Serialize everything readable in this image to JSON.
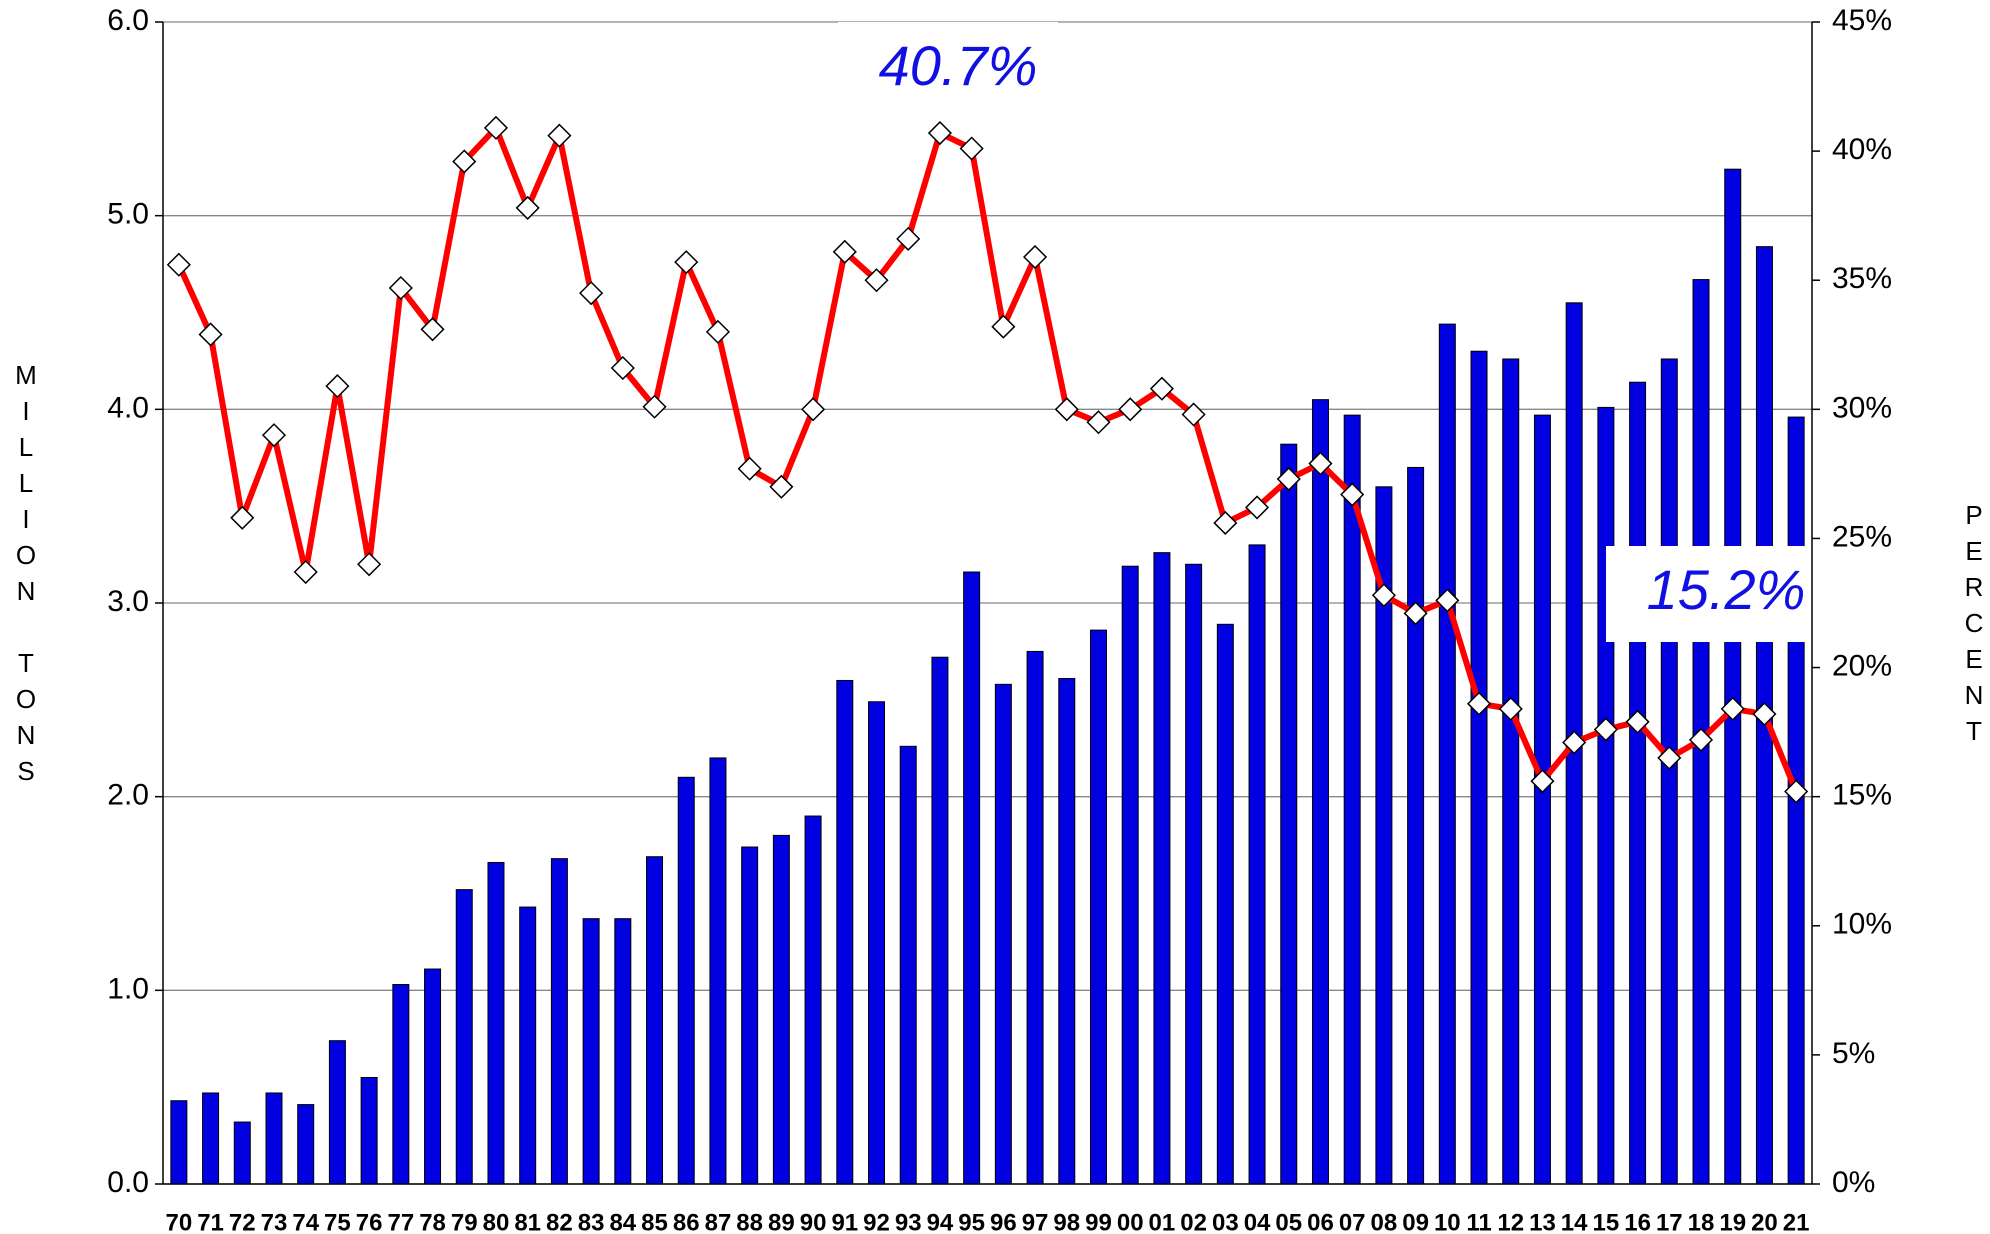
{
  "chart_data": {
    "type": "bar",
    "ylabel": "MILLION TONS",
    "y2label": "PERCENT",
    "categories": [
      "70",
      "71",
      "72",
      "73",
      "74",
      "75",
      "76",
      "77",
      "78",
      "79",
      "80",
      "81",
      "82",
      "83",
      "84",
      "85",
      "86",
      "87",
      "88",
      "89",
      "90",
      "91",
      "92",
      "93",
      "94",
      "95",
      "96",
      "97",
      "98",
      "99",
      "00",
      "01",
      "02",
      "03",
      "04",
      "05",
      "06",
      "07",
      "08",
      "09",
      "10",
      "11",
      "12",
      "13",
      "14",
      "15",
      "16",
      "17",
      "18",
      "19",
      "20",
      "21"
    ],
    "series": [
      {
        "type": "bar",
        "color": "#0000e0",
        "values": [
          0.43,
          0.47,
          0.32,
          0.47,
          0.41,
          0.74,
          0.55,
          1.03,
          1.11,
          1.52,
          1.66,
          1.43,
          1.68,
          1.37,
          1.37,
          1.69,
          2.1,
          2.2,
          1.74,
          1.8,
          1.9,
          2.6,
          2.49,
          2.26,
          2.72,
          3.16,
          2.58,
          2.75,
          2.61,
          2.86,
          3.19,
          3.26,
          3.2,
          2.89,
          3.3,
          3.82,
          4.05,
          3.97,
          3.6,
          3.7,
          4.44,
          4.3,
          4.26,
          3.97,
          4.55,
          4.01,
          4.14,
          4.26,
          4.67,
          5.24,
          4.84,
          3.96
        ]
      },
      {
        "type": "line",
        "axis": "y2",
        "color": "#ff0000",
        "values": [
          35.6,
          32.9,
          25.8,
          29.0,
          23.7,
          30.9,
          24.0,
          34.7,
          33.1,
          39.6,
          40.9,
          37.8,
          40.6,
          34.5,
          31.6,
          30.1,
          35.7,
          33.0,
          27.7,
          27.0,
          30.0,
          36.1,
          35.0,
          36.6,
          40.7,
          40.1,
          33.2,
          35.9,
          30.0,
          29.5,
          30.0,
          30.8,
          29.8,
          25.6,
          26.2,
          27.3,
          27.9,
          26.7,
          22.8,
          22.1,
          22.6,
          18.6,
          18.4,
          15.6,
          17.1,
          17.6,
          17.9,
          16.5,
          17.2,
          18.4,
          18.2,
          15.2
        ]
      }
    ],
    "ylim": [
      0,
      6
    ],
    "yticks": [
      {
        "value": 0,
        "label": "0.0"
      },
      {
        "value": 1,
        "label": "1.0"
      },
      {
        "value": 2,
        "label": "2.0"
      },
      {
        "value": 3,
        "label": "3.0"
      },
      {
        "value": 4,
        "label": "4.0"
      },
      {
        "value": 5,
        "label": "5.0"
      },
      {
        "value": 6,
        "label": "6.0"
      }
    ],
    "y2lim": [
      0,
      45
    ],
    "y2ticks": [
      {
        "value": 0,
        "label": "0%"
      },
      {
        "value": 5,
        "label": "5%"
      },
      {
        "value": 10,
        "label": "10%"
      },
      {
        "value": 15,
        "label": "15%"
      },
      {
        "value": 20,
        "label": "20%"
      },
      {
        "value": 25,
        "label": "25%"
      },
      {
        "value": 30,
        "label": "30%"
      },
      {
        "value": 35,
        "label": "35%"
      },
      {
        "value": 40,
        "label": "40%"
      },
      {
        "value": 45,
        "label": "45%"
      }
    ],
    "grid": true,
    "annotations": [
      "40.7%",
      "15.2%"
    ]
  }
}
